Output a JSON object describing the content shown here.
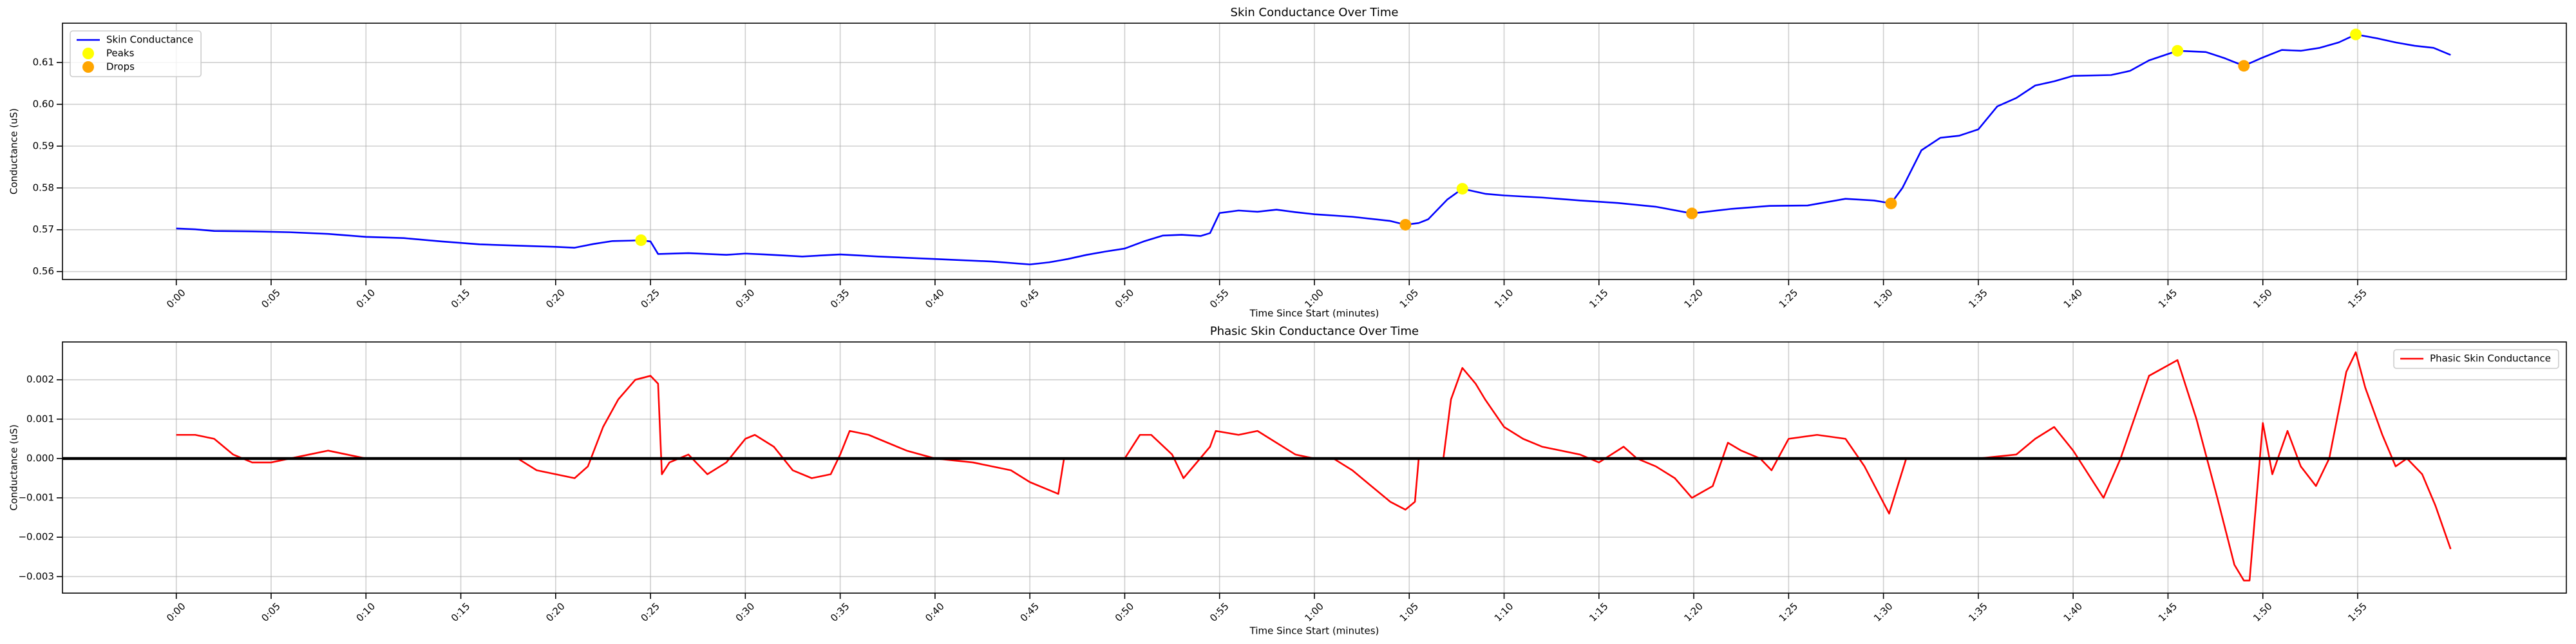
{
  "chart_data": [
    {
      "type": "line",
      "title": "Skin Conductance Over Time",
      "xlabel": "Time Since Start (minutes)",
      "ylabel": "Conductance (uS)",
      "xlim": [
        -6,
        126
      ],
      "ylim": [
        0.5581,
        0.6194
      ],
      "xticks": [
        {
          "value": 0,
          "label": "0:00"
        },
        {
          "value": 5,
          "label": "0:05"
        },
        {
          "value": 10,
          "label": "0:10"
        },
        {
          "value": 15,
          "label": "0:15"
        },
        {
          "value": 20,
          "label": "0:20"
        },
        {
          "value": 25,
          "label": "0:25"
        },
        {
          "value": 30,
          "label": "0:30"
        },
        {
          "value": 35,
          "label": "0:35"
        },
        {
          "value": 40,
          "label": "0:40"
        },
        {
          "value": 45,
          "label": "0:45"
        },
        {
          "value": 50,
          "label": "0:50"
        },
        {
          "value": 55,
          "label": "0:55"
        },
        {
          "value": 60,
          "label": "1:00"
        },
        {
          "value": 65,
          "label": "1:05"
        },
        {
          "value": 70,
          "label": "1:10"
        },
        {
          "value": 75,
          "label": "1:15"
        },
        {
          "value": 80,
          "label": "1:20"
        },
        {
          "value": 85,
          "label": "1:25"
        },
        {
          "value": 90,
          "label": "1:30"
        },
        {
          "value": 95,
          "label": "1:35"
        },
        {
          "value": 100,
          "label": "1:40"
        },
        {
          "value": 105,
          "label": "1:45"
        },
        {
          "value": 110,
          "label": "1:50"
        },
        {
          "value": 115,
          "label": "1:55"
        }
      ],
      "yticks": [
        0.56,
        0.57,
        0.58,
        0.59,
        {
          "value": 0.6,
          "label": "0.60"
        },
        0.61
      ],
      "grid": true,
      "legend": "upper left",
      "series": [
        {
          "name": "Skin Conductance",
          "color": "#0000ff",
          "style": "line",
          "x": [
            0,
            1,
            2,
            4,
            6,
            8,
            10,
            12,
            14,
            16,
            18,
            20,
            21,
            22,
            23,
            24,
            24.5,
            25,
            25.4,
            27,
            29,
            30,
            31,
            33,
            35,
            37,
            40,
            43,
            45,
            46,
            47,
            48,
            49,
            50,
            51,
            52,
            53,
            54,
            54.5,
            55,
            56,
            57,
            58,
            59,
            60,
            62,
            64,
            64.8,
            65.5,
            66,
            67,
            67.8,
            69,
            70,
            72,
            74,
            76,
            78,
            79.9,
            82,
            84,
            86,
            88,
            89.5,
            90.4,
            91,
            92,
            93,
            94,
            95,
            96,
            97,
            98,
            99,
            100,
            102,
            103,
            104,
            105.5,
            107,
            108,
            109,
            110,
            111,
            112,
            113,
            114,
            114.9,
            116,
            117,
            118,
            119,
            119.9
          ],
          "values": [
            0.5703,
            0.5701,
            0.5697,
            0.5696,
            0.5694,
            0.569,
            0.5683,
            0.568,
            0.5672,
            0.5665,
            0.5662,
            0.5659,
            0.5657,
            0.5666,
            0.5673,
            0.5674,
            0.5675,
            0.5672,
            0.5642,
            0.5644,
            0.564,
            0.5643,
            0.5641,
            0.5636,
            0.5641,
            0.5636,
            0.563,
            0.5624,
            0.5617,
            0.5622,
            0.563,
            0.564,
            0.5648,
            0.5655,
            0.5672,
            0.5686,
            0.5688,
            0.5685,
            0.5692,
            0.574,
            0.5746,
            0.5743,
            0.5748,
            0.5742,
            0.5737,
            0.5731,
            0.5721,
            0.5712,
            0.5716,
            0.5725,
            0.5772,
            0.5798,
            0.5786,
            0.5782,
            0.5777,
            0.577,
            0.5764,
            0.5755,
            0.5739,
            0.575,
            0.5757,
            0.5758,
            0.5774,
            0.577,
            0.5763,
            0.58,
            0.589,
            0.592,
            0.5925,
            0.594,
            0.5995,
            0.6015,
            0.6045,
            0.6055,
            0.6068,
            0.607,
            0.608,
            0.6105,
            0.6128,
            0.6125,
            0.611,
            0.6092,
            0.6112,
            0.613,
            0.6128,
            0.6135,
            0.6148,
            0.6167,
            0.6158,
            0.6148,
            0.614,
            0.6135,
            0.6118
          ]
        },
        {
          "name": "Peaks",
          "color": "#ffff00",
          "style": "marker",
          "x": [
            24.5,
            67.8,
            105.5,
            114.9
          ],
          "values": [
            0.5675,
            0.5798,
            0.6128,
            0.6167
          ]
        },
        {
          "name": "Drops",
          "color": "#ffa500",
          "style": "marker",
          "x": [
            64.8,
            79.9,
            90.4,
            109
          ],
          "values": [
            0.5712,
            0.5739,
            0.5763,
            0.6092
          ]
        }
      ]
    },
    {
      "type": "line",
      "title": "Phasic Skin Conductance Over Time",
      "xlabel": "Time Since Start (minutes)",
      "ylabel": "Conductance (uS)",
      "xlim": [
        -6,
        126
      ],
      "ylim": [
        -0.00342,
        0.00296
      ],
      "xticks": [
        {
          "value": 0,
          "label": "0:00"
        },
        {
          "value": 5,
          "label": "0:05"
        },
        {
          "value": 10,
          "label": "0:10"
        },
        {
          "value": 15,
          "label": "0:15"
        },
        {
          "value": 20,
          "label": "0:20"
        },
        {
          "value": 25,
          "label": "0:25"
        },
        {
          "value": 30,
          "label": "0:30"
        },
        {
          "value": 35,
          "label": "0:35"
        },
        {
          "value": 40,
          "label": "0:40"
        },
        {
          "value": 45,
          "label": "0:45"
        },
        {
          "value": 50,
          "label": "0:50"
        },
        {
          "value": 55,
          "label": "0:55"
        },
        {
          "value": 60,
          "label": "1:00"
        },
        {
          "value": 65,
          "label": "1:05"
        },
        {
          "value": 70,
          "label": "1:10"
        },
        {
          "value": 75,
          "label": "1:15"
        },
        {
          "value": 80,
          "label": "1:20"
        },
        {
          "value": 85,
          "label": "1:25"
        },
        {
          "value": 90,
          "label": "1:30"
        },
        {
          "value": 95,
          "label": "1:35"
        },
        {
          "value": 100,
          "label": "1:40"
        },
        {
          "value": 105,
          "label": "1:45"
        },
        {
          "value": 110,
          "label": "1:50"
        },
        {
          "value": 115,
          "label": "1:55"
        }
      ],
      "yticks": [
        {
          "value": -0.003,
          "label": "−0.003"
        },
        {
          "value": -0.002,
          "label": "−0.002"
        },
        {
          "value": -0.001,
          "label": "−0.001"
        },
        {
          "value": 0,
          "label": "0.000"
        },
        0.001,
        0.002
      ],
      "grid": true,
      "legend": "upper right",
      "hline": {
        "value": 0,
        "color": "#000000"
      },
      "series": [
        {
          "name": "Phasic Skin Conductance",
          "color": "#ff0000",
          "style": "line",
          "x": [
            0,
            1,
            2,
            3,
            4,
            5,
            6,
            7,
            8,
            9,
            10,
            12,
            15,
            18,
            19,
            20,
            21,
            21.7,
            22.5,
            23.3,
            24.2,
            25,
            25.4,
            25.6,
            26,
            27,
            28,
            29,
            30,
            30.5,
            31.5,
            32.5,
            33.5,
            34.5,
            35,
            35.5,
            36.5,
            37.5,
            38.5,
            40,
            42,
            44,
            45,
            46,
            46.5,
            46.8,
            48,
            50,
            50.8,
            51.4,
            52.5,
            53.1,
            54.5,
            54.8,
            56,
            57,
            58,
            59,
            60,
            61,
            62,
            63,
            64,
            64.8,
            65.3,
            65.5,
            66.8,
            67.2,
            67.8,
            68.5,
            69,
            70,
            71,
            72,
            74,
            75,
            76.3,
            77,
            78,
            79,
            79.9,
            81,
            81.8,
            82.5,
            83.5,
            84.1,
            85,
            86.5,
            88,
            89,
            90.3,
            91.2,
            93,
            95,
            97,
            98,
            99,
            100,
            101.6,
            102.5,
            104,
            105.5,
            106.5,
            107.6,
            108.5,
            109,
            109.3,
            110,
            110.5,
            111.3,
            112,
            112.8,
            113.5,
            114.4,
            114.9,
            115.4,
            116.3,
            117,
            117.6,
            118.4,
            119.1,
            119.9
          ],
          "values": [
            0.0006,
            0.0006,
            0.0005,
            0.0001,
            -0.0001,
            -0.0001,
            0,
            0.0001,
            0.0002,
            0.0001,
            0,
            0,
            0,
            0,
            -0.0003,
            -0.0004,
            -0.0005,
            -0.0002,
            0.0008,
            0.0015,
            0.002,
            0.0021,
            0.0019,
            -0.0004,
            -0.0001,
            0.0001,
            -0.0004,
            -0.0001,
            0.0005,
            0.0006,
            0.0003,
            -0.0003,
            -0.0005,
            -0.0004,
            0.0001,
            0.0007,
            0.0006,
            0.0004,
            0.0002,
            0,
            -0.0001,
            -0.0003,
            -0.0006,
            -0.0008,
            -0.0009,
            0,
            0,
            0,
            0.0006,
            0.0006,
            0.0001,
            -0.0005,
            0.0003,
            0.0007,
            0.0006,
            0.0007,
            0.0004,
            0.0001,
            0,
            0,
            -0.0003,
            -0.0007,
            -0.0011,
            -0.0013,
            -0.0011,
            0,
            0,
            0.0015,
            0.0023,
            0.0019,
            0.0015,
            0.0008,
            0.0005,
            0.0003,
            0.0001,
            -0.0001,
            0.0003,
            0,
            -0.0002,
            -0.0005,
            -0.001,
            -0.0007,
            0.0004,
            0.0002,
            0,
            -0.0003,
            0.0005,
            0.0006,
            0.0005,
            -0.0002,
            -0.0014,
            0,
            0,
            0,
            0.0001,
            0.0005,
            0.0008,
            0.0002,
            -0.001,
            0,
            0.0021,
            0.0025,
            0.001,
            -0.001,
            -0.0027,
            -0.0031,
            -0.0031,
            0.0009,
            -0.0004,
            0.0007,
            -0.0002,
            -0.0007,
            0,
            0.0022,
            0.0027,
            0.0018,
            0.0006,
            -0.0002,
            0,
            -0.0004,
            -0.0012,
            -0.0023
          ]
        }
      ]
    }
  ]
}
